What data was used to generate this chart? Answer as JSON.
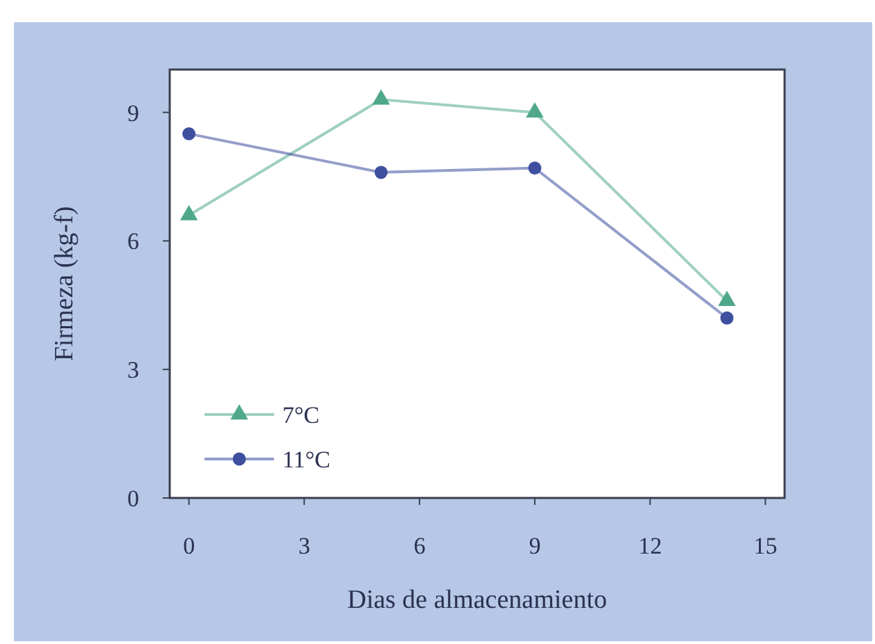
{
  "chart_data": {
    "type": "line",
    "xlabel": "Dias de almacenamiento",
    "ylabel": "Firmeza (kg-f)",
    "x": [
      0,
      5,
      9,
      14
    ],
    "series": [
      {
        "name": "7°C",
        "color": "#4fa88a",
        "marker": "triangle",
        "values": [
          6.6,
          9.3,
          9.0,
          4.6
        ]
      },
      {
        "name": "11°C",
        "color": "#3d4f9e",
        "marker": "circle",
        "values": [
          8.5,
          7.6,
          7.7,
          4.2
        ]
      }
    ],
    "xlim": [
      -0.5,
      15.5
    ],
    "xticks": [
      0,
      3,
      6,
      9,
      12,
      15
    ],
    "ylim": [
      0,
      10
    ],
    "yticks": [
      0,
      3,
      6,
      9
    ],
    "grid": false,
    "legend": "bottom left"
  }
}
